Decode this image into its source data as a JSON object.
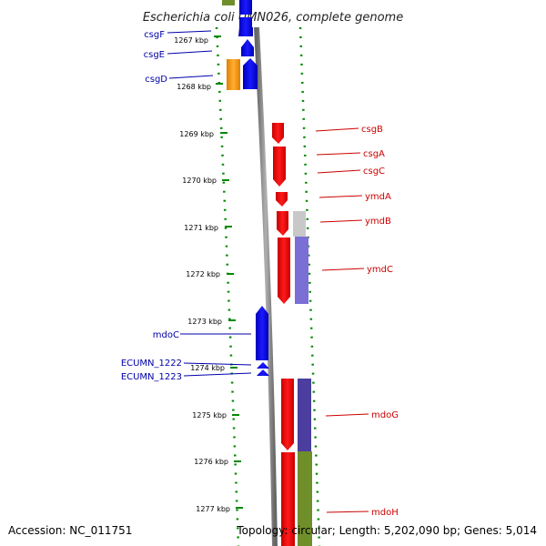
{
  "title": "Escherichia coli UMN026, complete genome",
  "accession": "Accession: NC_011751",
  "topology": "Topology: circular; Length: 5,202,090 bp; Genes: 5,014",
  "kbp_labels": [
    "1267 kbp",
    "1268 kbp",
    "1269 kbp",
    "1270 kbp",
    "1271 kbp",
    "1272 kbp",
    "1273 kbp",
    "1274 kbp",
    "1275 kbp",
    "1276 kbp",
    "1277 kbp"
  ],
  "left_genes": [
    "csgF",
    "csgE",
    "csgD",
    "mdoC",
    "ECUMN_1222",
    "ECUMN_1223"
  ],
  "right_genes": [
    "csgB",
    "csgA",
    "csgC",
    "ymdA",
    "ymdB",
    "ymdC",
    "mdoG",
    "mdoH"
  ],
  "colors": {
    "forward_strand": "#0000ee",
    "reverse_strand": "#ee0000",
    "orange_gene": "#ff9900",
    "tick": "#008800",
    "backbone": "#888888",
    "left_label": "#0000aa",
    "right_label": "#cc0000",
    "bar_gray": "#c8c8c8",
    "bar_purple": "#7b6fd6",
    "bar_navy": "#4b3e9e",
    "bar_green": "#6f8f2a"
  }
}
